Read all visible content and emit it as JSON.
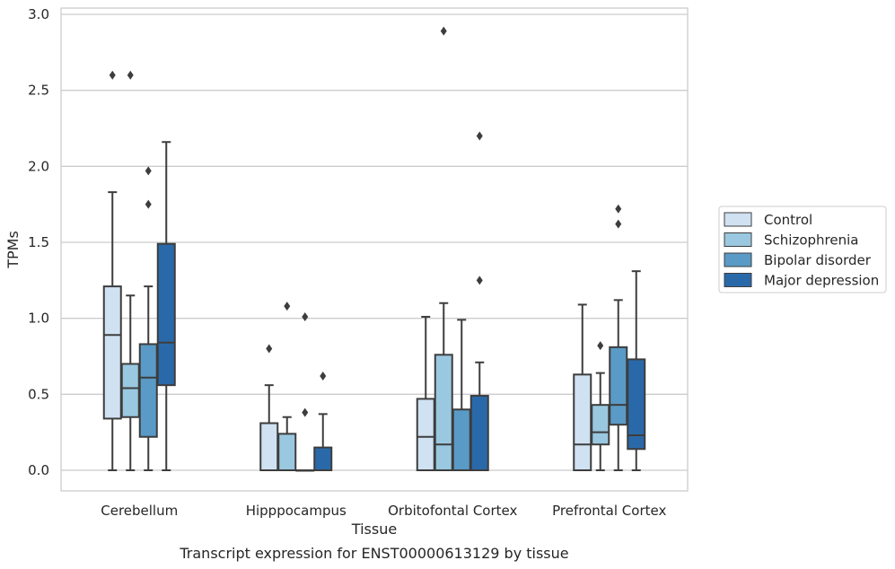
{
  "chart_data": {
    "type": "boxplot",
    "caption": "Transcript expression for ENST00000613129 by tissue",
    "xlabel": "Tissue",
    "ylabel": "TPMs",
    "ylim": [
      -0.14,
      3.04
    ],
    "yticks": [
      "0.0",
      "0.5",
      "1.0",
      "1.5",
      "2.0",
      "2.5",
      "3.0"
    ],
    "grid": true,
    "legend_position": "right",
    "categories": [
      "Cerebellum",
      "Hipppocampus",
      "Orbitofontal Cortex",
      "Prefrontal Cortex"
    ],
    "series": [
      {
        "name": "Control",
        "color": "#d0e1f2",
        "boxes": [
          {
            "min": 0.0,
            "q1": 0.34,
            "median": 0.89,
            "q3": 1.21,
            "max": 1.83,
            "outliers": [
              2.6
            ]
          },
          {
            "min": 0.0,
            "q1": 0.0,
            "median": 0.0,
            "q3": 0.31,
            "max": 0.56,
            "outliers": [
              0.8
            ]
          },
          {
            "min": 0.0,
            "q1": 0.0,
            "median": 0.22,
            "q3": 0.47,
            "max": 1.01,
            "outliers": []
          },
          {
            "min": 0.0,
            "q1": 0.0,
            "median": 0.17,
            "q3": 0.63,
            "max": 1.09,
            "outliers": []
          }
        ]
      },
      {
        "name": "Schizophrenia",
        "color": "#9ac8e0",
        "boxes": [
          {
            "min": 0.0,
            "q1": 0.35,
            "median": 0.54,
            "q3": 0.7,
            "max": 1.15,
            "outliers": [
              2.6
            ]
          },
          {
            "min": 0.0,
            "q1": 0.0,
            "median": 0.0,
            "q3": 0.24,
            "max": 0.35,
            "outliers": [
              1.08
            ]
          },
          {
            "min": 0.0,
            "q1": 0.0,
            "median": 0.17,
            "q3": 0.76,
            "max": 1.1,
            "outliers": [
              2.89
            ]
          },
          {
            "min": 0.0,
            "q1": 0.17,
            "median": 0.25,
            "q3": 0.43,
            "max": 0.64,
            "outliers": [
              0.82
            ]
          }
        ]
      },
      {
        "name": "Bipolar disorder",
        "color": "#5a9ac6",
        "boxes": [
          {
            "min": 0.0,
            "q1": 0.22,
            "median": 0.61,
            "q3": 0.83,
            "max": 1.21,
            "outliers": [
              1.75,
              1.97
            ]
          },
          {
            "min": 0.0,
            "q1": 0.0,
            "median": 0.0,
            "q3": 0.0,
            "max": 0.0,
            "outliers": [
              0.38,
              1.01
            ]
          },
          {
            "min": 0.0,
            "q1": 0.0,
            "median": 0.0,
            "q3": 0.4,
            "max": 0.99,
            "outliers": []
          },
          {
            "min": 0.0,
            "q1": 0.3,
            "median": 0.43,
            "q3": 0.81,
            "max": 1.12,
            "outliers": [
              1.62,
              1.72
            ]
          }
        ]
      },
      {
        "name": "Major depression",
        "color": "#2a69a9",
        "boxes": [
          {
            "min": 0.0,
            "q1": 0.56,
            "median": 0.84,
            "q3": 1.49,
            "max": 2.16,
            "outliers": []
          },
          {
            "min": 0.0,
            "q1": 0.0,
            "median": 0.0,
            "q3": 0.15,
            "max": 0.37,
            "outliers": [
              0.62
            ]
          },
          {
            "min": 0.0,
            "q1": 0.0,
            "median": 0.0,
            "q3": 0.49,
            "max": 0.71,
            "outliers": [
              1.25,
              2.2
            ]
          },
          {
            "min": 0.0,
            "q1": 0.14,
            "median": 0.23,
            "q3": 0.73,
            "max": 1.31,
            "outliers": []
          }
        ]
      }
    ]
  }
}
